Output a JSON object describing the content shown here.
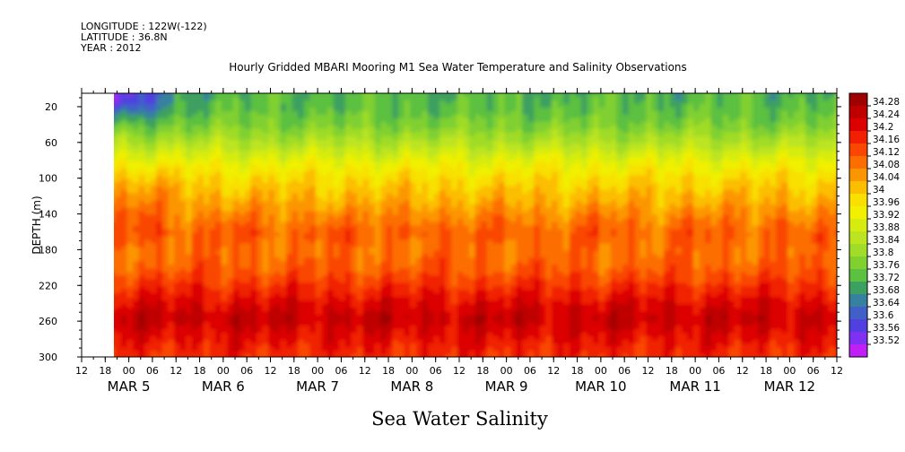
{
  "header": {
    "longitude": "LONGITUDE : 122W(-122)",
    "latitude": "LATITUDE : 36.8N",
    "year": "YEAR : 2012"
  },
  "chart_data": {
    "type": "heatmap",
    "title": "Hourly Gridded MBARI Mooring M1 Sea Water Temperature and Salinity Observations",
    "bottom_title": "Sea Water Salinity",
    "ylabel": "DEPTH (m)",
    "ylim": [
      300,
      5
    ],
    "y_ticks": [
      20,
      60,
      100,
      140,
      180,
      220,
      260,
      300
    ],
    "x_hour_ticks": [
      "12",
      "18",
      "00",
      "06",
      "12",
      "18",
      "00",
      "06",
      "12",
      "18",
      "00",
      "06",
      "12",
      "18",
      "00",
      "06",
      "12",
      "18",
      "00",
      "06",
      "12",
      "18",
      "00",
      "06",
      "12",
      "18",
      "00",
      "06",
      "12",
      "18",
      "00",
      "06",
      "12"
    ],
    "x_range_hours": [
      12,
      204
    ],
    "data_start_hour": 21,
    "x_day_labels": [
      {
        "label": "MAR  5",
        "hour": 24
      },
      {
        "label": "MAR  6",
        "hour": 48
      },
      {
        "label": "MAR  7",
        "hour": 72
      },
      {
        "label": "MAR  8",
        "hour": 96
      },
      {
        "label": "MAR  9",
        "hour": 120
      },
      {
        "label": "MAR 10",
        "hour": 144
      },
      {
        "label": "MAR 11",
        "hour": 168
      },
      {
        "label": "MAR 12",
        "hour": 192
      }
    ],
    "colorbar": {
      "levels": [
        "34.28",
        "34.24",
        "34.2",
        "34.16",
        "34.12",
        "34.08",
        "34.04",
        "34",
        "33.96",
        "33.92",
        "33.88",
        "33.84",
        "33.8",
        "33.76",
        "33.72",
        "33.68",
        "33.64",
        "33.6",
        "33.56",
        "33.52"
      ],
      "colors": [
        "#a00000",
        "#be0000",
        "#dc0000",
        "#f02000",
        "#fa4600",
        "#fc6e00",
        "#fc9600",
        "#fcbe00",
        "#f8e000",
        "#f0f000",
        "#d6ec10",
        "#bce420",
        "#a0dc28",
        "#80d030",
        "#5cc040",
        "#3ca060",
        "#3880a0",
        "#4060c8",
        "#5040e0",
        "#8030f0",
        "#c020f8"
      ]
    },
    "profile": [
      {
        "depth": 5,
        "value": 33.73
      },
      {
        "depth": 20,
        "value": 33.74
      },
      {
        "depth": 40,
        "value": 33.78
      },
      {
        "depth": 60,
        "value": 33.85
      },
      {
        "depth": 80,
        "value": 33.93
      },
      {
        "depth": 100,
        "value": 33.99
      },
      {
        "depth": 120,
        "value": 34.03
      },
      {
        "depth": 140,
        "value": 34.07
      },
      {
        "depth": 160,
        "value": 34.11
      },
      {
        "depth": 180,
        "value": 34.1
      },
      {
        "depth": 200,
        "value": 34.12
      },
      {
        "depth": 220,
        "value": 34.17
      },
      {
        "depth": 240,
        "value": 34.22
      },
      {
        "depth": 255,
        "value": 34.25
      },
      {
        "depth": 270,
        "value": 34.22
      },
      {
        "depth": 285,
        "value": 34.19
      },
      {
        "depth": 300,
        "value": 34.17
      }
    ]
  }
}
